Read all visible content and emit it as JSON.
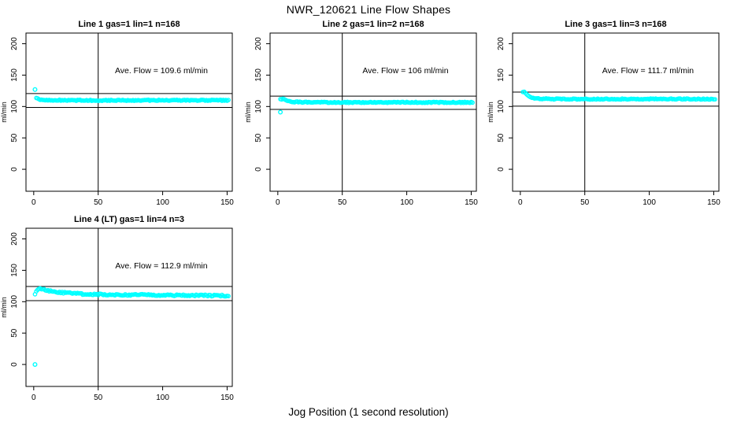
{
  "figure": {
    "title": "NWR_120621  Line Flow Shapes",
    "xlabel": "Jog Position (1 second resolution)",
    "ylabel": "ml/min",
    "point_color": "#00FFFF",
    "axis_color": "#000000",
    "background_color": "#FFFFFF"
  },
  "chart_data": [
    {
      "type": "scatter",
      "title": "Line 1 gas=1 lin=1 n=168",
      "annotation": "Ave. Flow =  109.6  ml/min",
      "ave_flow": 109.6,
      "ref_upper": 120.6,
      "ref_lower": 98.6,
      "vline_x": 50,
      "xlim": [
        -6,
        154
      ],
      "ylim": [
        -35,
        217
      ],
      "xticks": [
        0,
        50,
        100,
        150
      ],
      "yticks": [
        0,
        50,
        100,
        150,
        200
      ],
      "ylabel": "ml/min",
      "x_start": 2,
      "x_end": 151,
      "x_step": 1,
      "jitter": 0.8,
      "series_control_points": [
        [
          2,
          114
        ],
        [
          3,
          112.5
        ],
        [
          5,
          111
        ],
        [
          8,
          110.3
        ],
        [
          15,
          110
        ],
        [
          40,
          109.8
        ],
        [
          60,
          109.8
        ],
        [
          100,
          110
        ],
        [
          151,
          109.8
        ]
      ],
      "outliers": [
        [
          1,
          127
        ]
      ]
    },
    {
      "type": "scatter",
      "title": "Line 2 gas=1 lin=2 n=168",
      "annotation": "Ave. Flow =  106  ml/min",
      "ave_flow": 106,
      "ref_upper": 116.6,
      "ref_lower": 95.4,
      "vline_x": 50,
      "xlim": [
        -6,
        154
      ],
      "ylim": [
        -35,
        217
      ],
      "xticks": [
        0,
        50,
        100,
        150
      ],
      "yticks": [
        0,
        50,
        100,
        150,
        200
      ],
      "ylabel": "ml/min",
      "x_start": 2,
      "x_end": 151,
      "x_step": 1,
      "jitter": 0.8,
      "series_control_points": [
        [
          2,
          111.5
        ],
        [
          4,
          112.5
        ],
        [
          6,
          111
        ],
        [
          9,
          108.5
        ],
        [
          13,
          107.3
        ],
        [
          20,
          106.8
        ],
        [
          50,
          106.5
        ],
        [
          100,
          106.6
        ],
        [
          151,
          106.5
        ]
      ],
      "outliers": [
        [
          2,
          91
        ]
      ]
    },
    {
      "type": "scatter",
      "title": "Line 3 gas=1 lin=3 n=168",
      "annotation": "Ave. Flow =  111.7  ml/min",
      "ave_flow": 111.7,
      "ref_upper": 122.9,
      "ref_lower": 100.5,
      "vline_x": 50,
      "xlim": [
        -6,
        154
      ],
      "ylim": [
        -35,
        217
      ],
      "xticks": [
        0,
        50,
        100,
        150
      ],
      "yticks": [
        0,
        50,
        100,
        150,
        200
      ],
      "ylabel": "ml/min",
      "x_start": 2,
      "x_end": 151,
      "x_step": 1,
      "jitter": 0.8,
      "series_control_points": [
        [
          2,
          123
        ],
        [
          3,
          124
        ],
        [
          5,
          119
        ],
        [
          7,
          116
        ],
        [
          10,
          113.5
        ],
        [
          15,
          112.3
        ],
        [
          25,
          112
        ],
        [
          60,
          111.8
        ],
        [
          100,
          112
        ],
        [
          151,
          111.8
        ]
      ],
      "outliers": []
    },
    {
      "type": "scatter",
      "title": "Line 4 (LT) gas=1 lin=4 n=3",
      "annotation": "Ave. Flow =  112.9  ml/min",
      "ave_flow": 112.9,
      "ref_upper": 124.2,
      "ref_lower": 101.6,
      "vline_x": 50,
      "xlim": [
        -6,
        154
      ],
      "ylim": [
        -35,
        217
      ],
      "xticks": [
        0,
        50,
        100,
        150
      ],
      "yticks": [
        0,
        50,
        100,
        150,
        200
      ],
      "ylabel": "ml/min",
      "x_start": 1,
      "x_end": 151,
      "x_step": 1,
      "jitter": 1.2,
      "series_control_points": [
        [
          1,
          113
        ],
        [
          3,
          119.5
        ],
        [
          5,
          120
        ],
        [
          8,
          119
        ],
        [
          12,
          117.5
        ],
        [
          18,
          115.5
        ],
        [
          25,
          114
        ],
        [
          35,
          112.5
        ],
        [
          50,
          111.5
        ],
        [
          70,
          111
        ],
        [
          100,
          110.5
        ],
        [
          130,
          110
        ],
        [
          151,
          109.5
        ]
      ],
      "outliers": [
        [
          1,
          0
        ]
      ]
    }
  ]
}
